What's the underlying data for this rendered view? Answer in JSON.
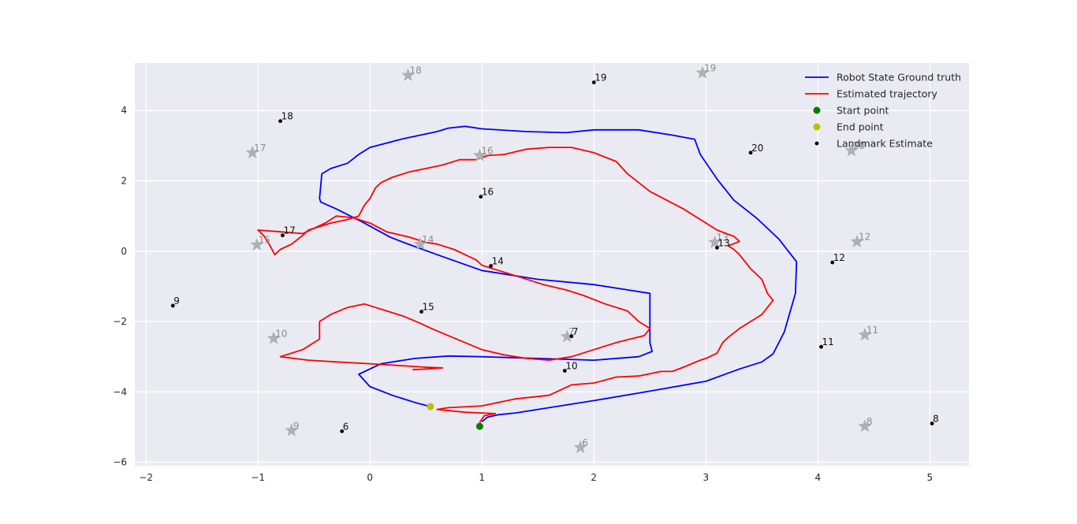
{
  "chart_data": {
    "type": "scatter",
    "title": "",
    "xlabel": "",
    "ylabel": "",
    "xlim": [
      -2.1,
      5.35
    ],
    "ylim": [
      -6.1,
      5.35
    ],
    "xticks": [
      -2,
      -1,
      0,
      1,
      2,
      3,
      4,
      5
    ],
    "yticks": [
      -6,
      -4,
      -2,
      0,
      2,
      4
    ],
    "grid": true,
    "legend_position": "top-right",
    "colors": {
      "background": "#eaeaf2",
      "grid": "#ffffff",
      "ground_truth": "#0000ff",
      "estimate": "#ff0000",
      "start": "#008000",
      "end": "#bfbf00",
      "landmark_estimate": "#000000",
      "landmark_true": "#b0b0b0"
    },
    "legend": [
      {
        "key": "ground_truth",
        "label": "Robot State Ground truth",
        "kind": "line"
      },
      {
        "key": "estimate",
        "label": "Estimated trajectory",
        "kind": "line"
      },
      {
        "key": "start",
        "label": "Start point",
        "kind": "marker"
      },
      {
        "key": "end",
        "label": "End point",
        "kind": "marker"
      },
      {
        "key": "landmark_estimate",
        "label": "Landmark Estimate",
        "kind": "dot"
      }
    ],
    "series": [
      {
        "name": "Robot State Ground truth",
        "kind": "line",
        "color_key": "ground_truth",
        "points": [
          [
            1.0,
            -4.85
          ],
          [
            1.05,
            -4.72
          ],
          [
            1.15,
            -4.65
          ],
          [
            1.3,
            -4.6
          ],
          [
            1.6,
            -4.45
          ],
          [
            2.0,
            -4.25
          ],
          [
            2.5,
            -3.98
          ],
          [
            3.0,
            -3.7
          ],
          [
            3.3,
            -3.35
          ],
          [
            3.5,
            -3.15
          ],
          [
            3.6,
            -2.92
          ],
          [
            3.7,
            -2.3
          ],
          [
            3.8,
            -1.2
          ],
          [
            3.81,
            -0.3
          ],
          [
            3.65,
            0.35
          ],
          [
            3.45,
            0.95
          ],
          [
            3.25,
            1.45
          ],
          [
            3.1,
            2.05
          ],
          [
            2.95,
            2.75
          ],
          [
            2.9,
            3.18
          ],
          [
            2.7,
            3.3
          ],
          [
            2.4,
            3.45
          ],
          [
            2.0,
            3.45
          ],
          [
            1.75,
            3.37
          ],
          [
            1.4,
            3.4
          ],
          [
            1.0,
            3.48
          ],
          [
            0.85,
            3.55
          ],
          [
            0.7,
            3.5
          ],
          [
            0.6,
            3.4
          ],
          [
            0.3,
            3.2
          ],
          [
            0.0,
            2.95
          ],
          [
            -0.1,
            2.75
          ],
          [
            -0.2,
            2.5
          ],
          [
            -0.35,
            2.35
          ],
          [
            -0.43,
            2.2
          ],
          [
            -0.45,
            1.5
          ],
          [
            -0.44,
            1.4
          ],
          [
            -0.3,
            1.2
          ],
          [
            -0.05,
            0.8
          ],
          [
            0.18,
            0.4
          ],
          [
            0.3,
            0.25
          ],
          [
            0.6,
            -0.1
          ],
          [
            1.0,
            -0.55
          ],
          [
            1.5,
            -0.8
          ],
          [
            2.0,
            -0.95
          ],
          [
            2.3,
            -1.1
          ],
          [
            2.5,
            -1.2
          ],
          [
            2.5,
            -2.6
          ],
          [
            2.52,
            -2.85
          ],
          [
            2.4,
            -3.0
          ],
          [
            2.0,
            -3.1
          ],
          [
            1.5,
            -3.05
          ],
          [
            1.0,
            -3.0
          ],
          [
            0.7,
            -2.98
          ],
          [
            0.4,
            -3.05
          ],
          [
            0.1,
            -3.2
          ],
          [
            -0.1,
            -3.5
          ],
          [
            0.0,
            -3.85
          ],
          [
            0.2,
            -4.1
          ],
          [
            0.4,
            -4.3
          ],
          [
            0.54,
            -4.42
          ]
        ]
      },
      {
        "name": "Estimated trajectory",
        "kind": "line",
        "color_key": "estimate",
        "points": [
          [
            0.98,
            -4.87
          ],
          [
            1.02,
            -4.68
          ],
          [
            1.12,
            -4.62
          ],
          [
            0.85,
            -4.58
          ],
          [
            0.6,
            -4.5
          ],
          [
            0.7,
            -4.45
          ],
          [
            1.0,
            -4.4
          ],
          [
            1.3,
            -4.2
          ],
          [
            1.6,
            -4.1
          ],
          [
            1.8,
            -3.8
          ],
          [
            2.0,
            -3.75
          ],
          [
            2.2,
            -3.58
          ],
          [
            2.4,
            -3.55
          ],
          [
            2.6,
            -3.42
          ],
          [
            2.7,
            -3.42
          ],
          [
            2.8,
            -3.3
          ],
          [
            2.95,
            -3.1
          ],
          [
            3.0,
            -3.05
          ],
          [
            3.1,
            -2.9
          ],
          [
            3.15,
            -2.6
          ],
          [
            3.2,
            -2.45
          ],
          [
            3.3,
            -2.2
          ],
          [
            3.4,
            -2.0
          ],
          [
            3.5,
            -1.8
          ],
          [
            3.55,
            -1.6
          ],
          [
            3.6,
            -1.4
          ],
          [
            3.55,
            -1.2
          ],
          [
            3.5,
            -0.8
          ],
          [
            3.4,
            -0.5
          ],
          [
            3.35,
            -0.3
          ],
          [
            3.3,
            -0.1
          ],
          [
            3.25,
            0.05
          ],
          [
            3.2,
            0.15
          ],
          [
            3.3,
            0.28
          ],
          [
            3.25,
            0.42
          ],
          [
            3.1,
            0.6
          ],
          [
            2.9,
            1.0
          ],
          [
            2.8,
            1.2
          ],
          [
            2.5,
            1.7
          ],
          [
            2.3,
            2.2
          ],
          [
            2.2,
            2.55
          ],
          [
            2.0,
            2.8
          ],
          [
            1.8,
            2.95
          ],
          [
            1.6,
            2.95
          ],
          [
            1.4,
            2.9
          ],
          [
            1.2,
            2.75
          ],
          [
            1.05,
            2.72
          ],
          [
            0.95,
            2.6
          ],
          [
            0.8,
            2.6
          ],
          [
            0.65,
            2.45
          ],
          [
            0.5,
            2.35
          ],
          [
            0.35,
            2.25
          ],
          [
            0.2,
            2.1
          ],
          [
            0.1,
            1.95
          ],
          [
            0.05,
            1.8
          ],
          [
            0.0,
            1.5
          ],
          [
            -0.05,
            1.3
          ],
          [
            -0.1,
            1.0
          ],
          [
            -0.2,
            0.9
          ],
          [
            -0.35,
            0.8
          ],
          [
            -0.55,
            0.6
          ],
          [
            -0.6,
            0.45
          ],
          [
            -0.7,
            0.2
          ],
          [
            -0.8,
            0.05
          ],
          [
            -0.85,
            -0.1
          ],
          [
            -0.9,
            0.2
          ],
          [
            -0.95,
            0.45
          ],
          [
            -1.0,
            0.6
          ],
          [
            -0.8,
            0.55
          ],
          [
            -0.6,
            0.5
          ],
          [
            -0.4,
            0.8
          ],
          [
            -0.3,
            1.0
          ],
          [
            -0.15,
            0.95
          ],
          [
            0.0,
            0.8
          ],
          [
            0.15,
            0.55
          ],
          [
            0.35,
            0.4
          ],
          [
            0.5,
            0.25
          ],
          [
            0.6,
            0.2
          ],
          [
            0.75,
            0.05
          ],
          [
            0.85,
            -0.1
          ],
          [
            0.95,
            -0.25
          ],
          [
            1.0,
            -0.4
          ],
          [
            1.15,
            -0.55
          ],
          [
            1.35,
            -0.75
          ],
          [
            1.55,
            -0.95
          ],
          [
            1.75,
            -1.1
          ],
          [
            1.9,
            -1.25
          ],
          [
            2.1,
            -1.5
          ],
          [
            2.3,
            -1.7
          ],
          [
            2.4,
            -2.0
          ],
          [
            2.5,
            -2.2
          ],
          [
            2.45,
            -2.4
          ],
          [
            2.2,
            -2.6
          ],
          [
            2.0,
            -2.8
          ],
          [
            1.8,
            -3.0
          ],
          [
            1.6,
            -3.1
          ],
          [
            1.4,
            -3.05
          ],
          [
            1.2,
            -2.95
          ],
          [
            1.0,
            -2.8
          ],
          [
            0.85,
            -2.6
          ],
          [
            0.7,
            -2.4
          ],
          [
            0.55,
            -2.2
          ],
          [
            0.45,
            -2.05
          ],
          [
            0.3,
            -1.85
          ],
          [
            0.15,
            -1.7
          ],
          [
            0.05,
            -1.6
          ],
          [
            -0.05,
            -1.5
          ],
          [
            -0.2,
            -1.6
          ],
          [
            -0.35,
            -1.8
          ],
          [
            -0.45,
            -2.0
          ],
          [
            -0.45,
            -2.5
          ],
          [
            -0.6,
            -2.8
          ],
          [
            -0.8,
            -3.0
          ],
          [
            -0.55,
            -3.1
          ],
          [
            -0.3,
            -3.15
          ],
          [
            0.0,
            -3.2
          ],
          [
            0.25,
            -3.25
          ],
          [
            0.5,
            -3.3
          ],
          [
            0.65,
            -3.32
          ],
          [
            0.5,
            -3.35
          ],
          [
            0.38,
            -3.37
          ]
        ]
      },
      {
        "name": "Start point",
        "kind": "marker",
        "color_key": "start",
        "points": [
          [
            0.98,
            -4.98
          ]
        ]
      },
      {
        "name": "End point",
        "kind": "marker",
        "color_key": "end",
        "points": [
          [
            0.54,
            -4.42
          ]
        ]
      }
    ],
    "landmarks_estimate": [
      {
        "label": "19",
        "x": 2.0,
        "y": 4.8
      },
      {
        "label": "18",
        "x": -0.8,
        "y": 3.7
      },
      {
        "label": "20",
        "x": 3.4,
        "y": 2.8
      },
      {
        "label": "16",
        "x": 0.99,
        "y": 1.55
      },
      {
        "label": "17",
        "x": -0.78,
        "y": 0.45
      },
      {
        "label": "13",
        "x": 3.1,
        "y": 0.1
      },
      {
        "label": "14",
        "x": 1.08,
        "y": -0.42
      },
      {
        "label": "12",
        "x": 4.13,
        "y": -0.32
      },
      {
        "label": "9",
        "x": -1.76,
        "y": -1.55
      },
      {
        "label": "15",
        "x": 0.46,
        "y": -1.72
      },
      {
        "label": "7",
        "x": 1.8,
        "y": -2.42
      },
      {
        "label": "11",
        "x": 4.03,
        "y": -2.72
      },
      {
        "label": "10",
        "x": 1.74,
        "y": -3.4
      },
      {
        "label": "6",
        "x": -0.25,
        "y": -5.12
      },
      {
        "label": "8",
        "x": 5.02,
        "y": -4.9
      }
    ],
    "landmarks_true": [
      {
        "label": "18",
        "x": 0.34,
        "y": 5.0
      },
      {
        "label": "19",
        "x": 2.97,
        "y": 5.07
      },
      {
        "label": "17",
        "x": -1.05,
        "y": 2.8
      },
      {
        "label": "16",
        "x": 0.98,
        "y": 2.72
      },
      {
        "label": "20",
        "x": 4.3,
        "y": 2.86
      },
      {
        "label": "15",
        "x": -1.01,
        "y": 0.18
      },
      {
        "label": "14",
        "x": 0.45,
        "y": 0.2
      },
      {
        "label": "13",
        "x": 3.08,
        "y": 0.25
      },
      {
        "label": "12",
        "x": 4.35,
        "y": 0.27
      },
      {
        "label": "10",
        "x": -0.86,
        "y": -2.48
      },
      {
        "label": "7",
        "x": 1.76,
        "y": -2.43
      },
      {
        "label": "11",
        "x": 4.42,
        "y": -2.38
      },
      {
        "label": "9",
        "x": -0.7,
        "y": -5.1
      },
      {
        "label": "6",
        "x": 1.88,
        "y": -5.58
      },
      {
        "label": "8",
        "x": 4.42,
        "y": -4.98
      }
    ]
  }
}
